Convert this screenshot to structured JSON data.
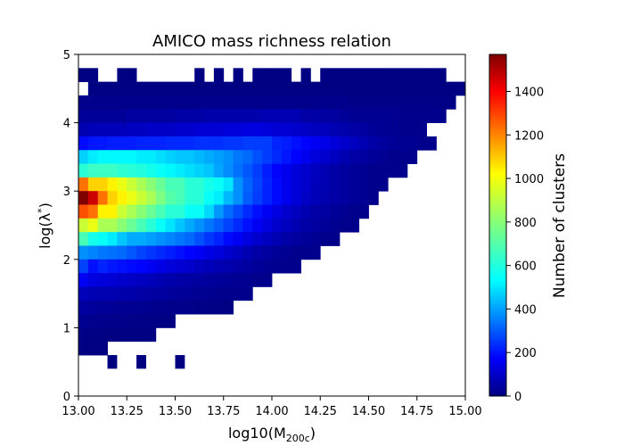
{
  "chart_data": {
    "type": "heatmap",
    "title": "AMICO mass richness relation",
    "xlabel": "log10(M",
    "xlabel_sub": "200c",
    "xlabel_end": ")",
    "ylabel": "log(λ",
    "ylabel_sup": "*",
    "ylabel_end": ")",
    "colorbar_label": "Number of clusters",
    "colormap": "jet",
    "xlim": [
      13.0,
      15.0
    ],
    "ylim": [
      0,
      5
    ],
    "vmin": 0,
    "vmax": 1570,
    "x_ticks": [
      "13.00",
      "13.25",
      "13.50",
      "13.75",
      "14.00",
      "14.25",
      "14.50",
      "14.75",
      "15.00"
    ],
    "y_ticks": [
      "0",
      "1",
      "2",
      "3",
      "4",
      "5"
    ],
    "colorbar_ticks": [
      "0",
      "200",
      "400",
      "600",
      "800",
      "1000",
      "1200",
      "1400"
    ],
    "grid": false,
    "bins": {
      "x_count": 40,
      "x_edges": [
        13.0,
        15.0
      ],
      "y_edges": [
        0.6,
        5.0
      ],
      "y_count": 22,
      "y_start": 0.6,
      "y_width": 0.2,
      "rows_top_to_bottom": [
        [
          0,
          0,
          0,
          0,
          0,
          0,
          0,
          0,
          0,
          0,
          0,
          0,
          0,
          0,
          0,
          0,
          0,
          0,
          0,
          0,
          0,
          0,
          0,
          0,
          0,
          0,
          0,
          0,
          0,
          0,
          0,
          0,
          0,
          0,
          0,
          0,
          0,
          0,
          0,
          0
        ],
        [
          5,
          5,
          0,
          0,
          5,
          5,
          0,
          0,
          0,
          0,
          0,
          0,
          5,
          0,
          5,
          0,
          5,
          0,
          5,
          5,
          5,
          5,
          0,
          5,
          0,
          5,
          5,
          5,
          5,
          5,
          5,
          5,
          5,
          5,
          5,
          5,
          5,
          5,
          0,
          0
        ],
        [
          0,
          5,
          5,
          5,
          5,
          5,
          5,
          5,
          5,
          5,
          5,
          5,
          5,
          5,
          5,
          5,
          5,
          5,
          5,
          5,
          5,
          5,
          5,
          5,
          5,
          5,
          5,
          5,
          5,
          5,
          5,
          5,
          5,
          5,
          5,
          5,
          5,
          5,
          5,
          5
        ],
        [
          20,
          20,
          20,
          20,
          20,
          20,
          20,
          20,
          20,
          20,
          20,
          20,
          20,
          20,
          20,
          20,
          20,
          20,
          20,
          20,
          20,
          20,
          20,
          20,
          20,
          20,
          20,
          20,
          15,
          15,
          15,
          15,
          15,
          15,
          15,
          15,
          15,
          10,
          10,
          0
        ],
        [
          40,
          40,
          40,
          40,
          40,
          50,
          50,
          50,
          50,
          50,
          60,
          60,
          60,
          70,
          70,
          70,
          70,
          70,
          70,
          80,
          80,
          80,
          80,
          60,
          60,
          50,
          50,
          40,
          30,
          30,
          30,
          30,
          30,
          20,
          20,
          20,
          20,
          20,
          0,
          0
        ],
        [
          80,
          90,
          90,
          90,
          90,
          100,
          100,
          110,
          110,
          110,
          120,
          120,
          130,
          130,
          130,
          140,
          140,
          150,
          150,
          140,
          130,
          130,
          120,
          110,
          100,
          90,
          80,
          70,
          60,
          50,
          40,
          30,
          30,
          20,
          20,
          20,
          0,
          0,
          0,
          0
        ],
        [
          210,
          230,
          230,
          240,
          240,
          240,
          250,
          250,
          250,
          260,
          260,
          260,
          270,
          270,
          270,
          280,
          280,
          290,
          290,
          290,
          250,
          240,
          220,
          200,
          180,
          160,
          140,
          120,
          100,
          80,
          60,
          50,
          40,
          30,
          30,
          20,
          20,
          0,
          0,
          0
        ],
        [
          520,
          560,
          580,
          580,
          580,
          580,
          560,
          560,
          540,
          520,
          500,
          500,
          480,
          460,
          440,
          420,
          380,
          360,
          320,
          290,
          260,
          230,
          200,
          170,
          140,
          120,
          100,
          80,
          60,
          50,
          40,
          30,
          20,
          20,
          20,
          0,
          0,
          0,
          0,
          0
        ],
        [
          650,
          680,
          680,
          680,
          660,
          650,
          640,
          620,
          600,
          580,
          560,
          540,
          520,
          500,
          450,
          410,
          370,
          330,
          290,
          240,
          200,
          170,
          140,
          120,
          100,
          80,
          60,
          50,
          40,
          30,
          20,
          20,
          20,
          20,
          0,
          0,
          0,
          0,
          0,
          0
        ],
        [
          1200,
          1050,
          1050,
          1000,
          950,
          900,
          850,
          800,
          750,
          700,
          700,
          650,
          650,
          620,
          600,
          550,
          420,
          350,
          300,
          250,
          210,
          170,
          140,
          120,
          90,
          80,
          60,
          50,
          40,
          30,
          20,
          20,
          0,
          0,
          0,
          0,
          0,
          0,
          0,
          0
        ],
        [
          1570,
          1450,
          1200,
          1050,
          1000,
          950,
          900,
          850,
          780,
          720,
          700,
          650,
          650,
          600,
          560,
          480,
          420,
          340,
          290,
          250,
          210,
          170,
          140,
          110,
          90,
          70,
          60,
          50,
          40,
          30,
          20,
          0,
          0,
          0,
          0,
          0,
          0,
          0,
          0,
          0
        ],
        [
          1250,
          1200,
          1000,
          1000,
          900,
          850,
          800,
          750,
          700,
          650,
          650,
          600,
          600,
          530,
          430,
          360,
          310,
          260,
          220,
          180,
          150,
          120,
          100,
          80,
          60,
          50,
          40,
          30,
          20,
          20,
          0,
          0,
          0,
          0,
          0,
          0,
          0,
          0,
          0,
          0
        ],
        [
          900,
          950,
          850,
          850,
          800,
          750,
          700,
          650,
          600,
          550,
          500,
          460,
          420,
          380,
          340,
          300,
          260,
          220,
          180,
          150,
          120,
          100,
          80,
          60,
          50,
          40,
          30,
          20,
          20,
          0,
          0,
          0,
          0,
          0,
          0,
          0,
          0,
          0,
          0,
          0
        ],
        [
          700,
          620,
          600,
          560,
          500,
          460,
          460,
          440,
          420,
          400,
          380,
          360,
          320,
          280,
          250,
          210,
          180,
          150,
          120,
          100,
          80,
          60,
          50,
          40,
          30,
          20,
          20,
          0,
          0,
          0,
          0,
          0,
          0,
          0,
          0,
          0,
          0,
          0,
          0,
          0
        ],
        [
          420,
          400,
          380,
          370,
          360,
          330,
          300,
          280,
          260,
          240,
          220,
          200,
          180,
          160,
          140,
          120,
          100,
          80,
          60,
          50,
          40,
          30,
          20,
          20,
          20,
          0,
          0,
          0,
          0,
          0,
          0,
          0,
          0,
          0,
          0,
          0,
          0,
          0,
          0,
          0
        ],
        [
          300,
          220,
          250,
          230,
          220,
          210,
          200,
          180,
          160,
          140,
          130,
          120,
          100,
          90,
          80,
          70,
          60,
          50,
          40,
          30,
          25,
          20,
          20,
          0,
          0,
          0,
          0,
          0,
          0,
          0,
          0,
          0,
          0,
          0,
          0,
          0,
          0,
          0,
          0,
          0
        ],
        [
          180,
          150,
          140,
          130,
          120,
          110,
          100,
          90,
          80,
          70,
          60,
          55,
          50,
          45,
          40,
          35,
          30,
          25,
          20,
          20,
          0,
          0,
          0,
          0,
          0,
          0,
          0,
          0,
          0,
          0,
          0,
          0,
          0,
          0,
          0,
          0,
          0,
          0,
          0,
          0
        ],
        [
          90,
          80,
          80,
          75,
          70,
          65,
          60,
          55,
          50,
          45,
          40,
          35,
          30,
          25,
          20,
          20,
          20,
          20,
          0,
          0,
          0,
          0,
          0,
          0,
          0,
          0,
          0,
          0,
          0,
          0,
          0,
          0,
          0,
          0,
          0,
          0,
          0,
          0,
          0,
          0
        ],
        [
          50,
          45,
          40,
          35,
          30,
          28,
          25,
          22,
          20,
          18,
          16,
          14,
          12,
          10,
          8,
          6,
          0,
          0,
          0,
          0,
          0,
          0,
          0,
          0,
          0,
          0,
          0,
          0,
          0,
          0,
          0,
          0,
          0,
          0,
          0,
          0,
          0,
          0,
          0,
          0
        ],
        [
          25,
          22,
          20,
          18,
          16,
          14,
          12,
          10,
          8,
          6,
          0,
          0,
          0,
          0,
          0,
          0,
          0,
          0,
          0,
          0,
          0,
          0,
          0,
          0,
          0,
          0,
          0,
          0,
          0,
          0,
          0,
          0,
          0,
          0,
          0,
          0,
          0,
          0,
          0,
          0
        ],
        [
          10,
          8,
          6,
          5,
          5,
          5,
          5,
          5,
          0,
          0,
          0,
          0,
          0,
          0,
          0,
          0,
          0,
          0,
          0,
          0,
          0,
          0,
          0,
          0,
          0,
          0,
          0,
          0,
          0,
          0,
          0,
          0,
          0,
          0,
          0,
          0,
          0,
          0,
          0,
          0
        ],
        [
          4,
          3,
          2,
          0,
          0,
          0,
          0,
          0,
          0,
          0,
          0,
          0,
          0,
          0,
          0,
          0,
          0,
          0,
          0,
          0,
          0,
          0,
          0,
          0,
          0,
          0,
          0,
          0,
          0,
          0,
          0,
          0,
          0,
          0,
          0,
          0,
          0,
          0,
          0,
          0
        ]
      ],
      "outliers": [
        {
          "x": 13.175,
          "y": 0.5
        },
        {
          "x": 13.325,
          "y": 0.5
        },
        {
          "x": 13.525,
          "y": 0.5
        }
      ]
    }
  }
}
